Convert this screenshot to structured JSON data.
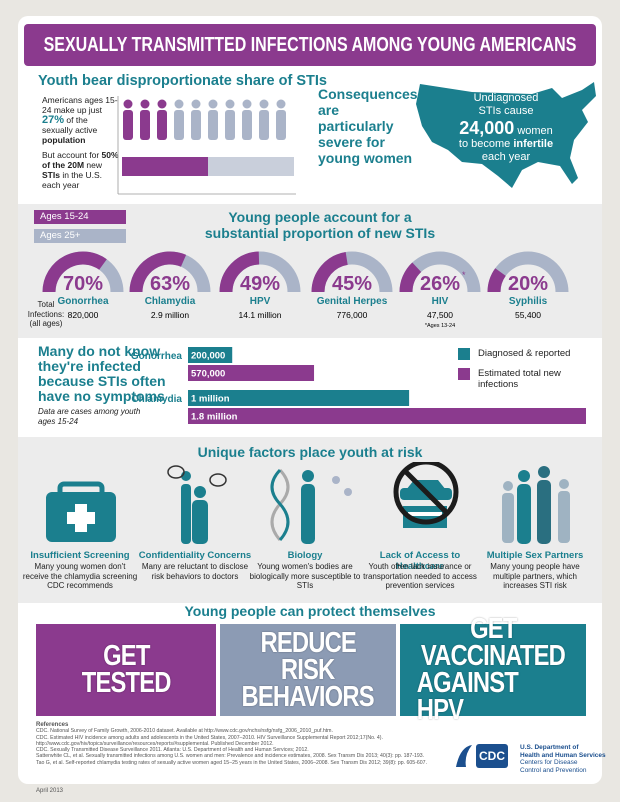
{
  "title": "SEXUALLY TRANSMITTED INFECTIONS AMONG YOUNG AMERICANS",
  "share": {
    "heading": "Youth bear disproportionate share of STIs",
    "population": [
      "Americans ages 15-24 make up just",
      "27%",
      "of the sexually active",
      "population"
    ],
    "infections": [
      "But account for",
      "50% of the 20M",
      "new",
      "STIs",
      "in the U.S. each year"
    ]
  },
  "consequences": {
    "heading": "Consequences are particularly severe for young women",
    "map_text": [
      "Undiagnosed",
      "STIs cause",
      "24,000",
      "women",
      "to become",
      "infertile",
      "each year"
    ]
  },
  "proportion": {
    "legend": [
      "Ages 15-24",
      "Ages 25+"
    ],
    "heading": "Young people account for a substantial proportion of new STIs",
    "total_label": "Total Infections:",
    "total_sub": "(all ages)",
    "items": [
      {
        "name": "Gonorrhea",
        "percent": 70,
        "percent_label": "70%",
        "total": "820,000"
      },
      {
        "name": "Chlamydia",
        "percent": 63,
        "percent_label": "63%",
        "total": "2.9 million"
      },
      {
        "name": "HPV",
        "percent": 49,
        "percent_label": "49%",
        "total": "14.1 million"
      },
      {
        "name": "Genital Herpes",
        "percent": 45,
        "percent_label": "45%",
        "total": "776,000"
      },
      {
        "name": "HIV",
        "percent": 26,
        "percent_label": "26%",
        "marker": "*",
        "total": "47,500",
        "note": "*Ages 13-24"
      },
      {
        "name": "Syphilis",
        "percent": 20,
        "percent_label": "20%",
        "total": "55,400"
      }
    ]
  },
  "symptoms": {
    "type": "bar",
    "heading": "Many do not know they're infected because STIs often have no symptoms",
    "note": "Data are cases among youth ages 15-24",
    "legend": [
      "Diagnosed & reported",
      "Estimated total new infections"
    ],
    "colors": [
      "#1b7f8e",
      "#8b3a8e"
    ],
    "xlim": [
      0,
      1800000
    ],
    "groups": [
      {
        "name": "Gonorrhea",
        "values": [
          200000,
          570000
        ],
        "value_labels": [
          "200,000",
          "570,000"
        ]
      },
      {
        "name": "Chlamydia",
        "values": [
          1000000,
          1800000
        ],
        "value_labels": [
          "1 million",
          "1.8 million"
        ]
      }
    ]
  },
  "factors": {
    "heading": "Unique factors place youth at risk",
    "items": [
      {
        "title": "Insufficient Screening",
        "text": "Many young women don't receive the chlamydia screening CDC recommends"
      },
      {
        "title": "Confidentiality Concerns",
        "text": "Many are reluctant to disclose risk behaviors to doctors"
      },
      {
        "title": "Biology",
        "text": "Young women's bodies are biologically more susceptible to STIs"
      },
      {
        "title": "Lack of Access to Healthcare",
        "text": "Youth often lack insurance or transportation needed to access prevention services"
      },
      {
        "title": "Multiple Sex Partners",
        "text": "Many young people have multiple partners, which increases STI risk"
      }
    ]
  },
  "protect": {
    "heading": "Young people can protect themselves",
    "actions": [
      [
        "GET",
        "TESTED"
      ],
      [
        "REDUCE",
        "RISK",
        "BEHAVIORS"
      ],
      [
        "GET",
        "VACCINATED",
        "AGAINST HPV"
      ]
    ]
  },
  "references": {
    "heading": "References",
    "items": [
      "CDC. National Survey of Family Growth, 2006-2010 dataset. Available at http://www.cdc.gov/nchs/nsfg/nsfg_2006_2010_puf.htm.",
      "CDC. Estimated HIV incidence among adults and adolescents in the United States, 2007–2010. HIV Surveillance Supplemental Report 2012;17(No. 4). http://www.cdc.gov/hiv/topics/surveillance/resources/reports/#supplemental. Published December 2012.",
      "CDC. Sexually Transmitted Disease Surveillance 2011. Atlanta: U.S. Department of Health and Human Services; 2012.",
      "Satterwhite CL, et al. Sexually transmitted infections among U.S. women and men: Prevalence and incidence estimates, 2008. Sex Transm Dis 2013; 40(3): pp. 187-193.",
      "Tao G, et al. Self-reported chlamydia testing rates of sexually active women aged 15–25 years in the United States, 2006–2008. Sex Transm Dis 2012; 39(8): pp. 605-607."
    ]
  },
  "logo": "CDC",
  "agency": [
    "U.S. Department of",
    "Health and Human Services",
    "Centers for Disease",
    "Control and Prevention"
  ],
  "date": "April 2013"
}
